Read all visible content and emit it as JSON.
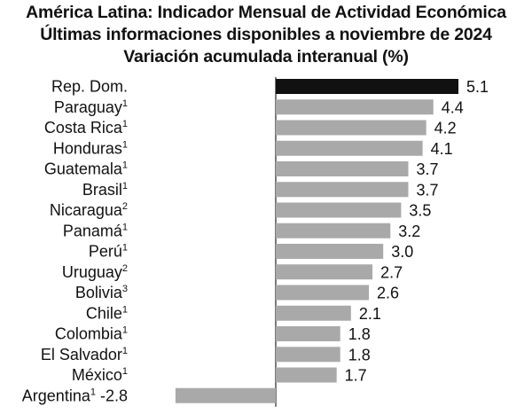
{
  "chart_data": {
    "type": "bar",
    "orientation": "horizontal",
    "title": "América Latina: Indicador Mensual de Actividad Económica",
    "subtitle": "Últimas informaciones disponibles a noviembre de 2024",
    "subtitle2": "Variación acumulada interanual (%)",
    "categories": [
      "Rep. Dom.",
      "Paraguay",
      "Costa Rica",
      "Honduras",
      "Guatemala",
      "Brasil",
      "Nicaragua",
      "Panamá",
      "Perú",
      "Uruguay",
      "Bolivia",
      "Chile",
      "Colombia",
      "El Salvador",
      "México",
      "Argentina"
    ],
    "footnote_marks": [
      "",
      "1",
      "1",
      "1",
      "1",
      "1",
      "2",
      "1",
      "1",
      "2",
      "3",
      "1",
      "1",
      "1",
      "1",
      "1"
    ],
    "values": [
      5.1,
      4.4,
      4.2,
      4.1,
      3.7,
      3.7,
      3.5,
      3.2,
      3.0,
      2.7,
      2.6,
      2.1,
      1.8,
      1.8,
      1.7,
      -2.8
    ],
    "value_labels": [
      "5.1",
      "4.4",
      "4.2",
      "4.1",
      "3.7",
      "3.7",
      "3.5",
      "3.2",
      "3.0",
      "2.7",
      "2.6",
      "2.1",
      "1.8",
      "1.8",
      "1.7",
      "-2.8"
    ],
    "highlight_index": 0,
    "colors": {
      "highlight": "#111111",
      "bar": "#a9a9a9",
      "axis": "#222222"
    },
    "grid": false,
    "legend": "none"
  }
}
